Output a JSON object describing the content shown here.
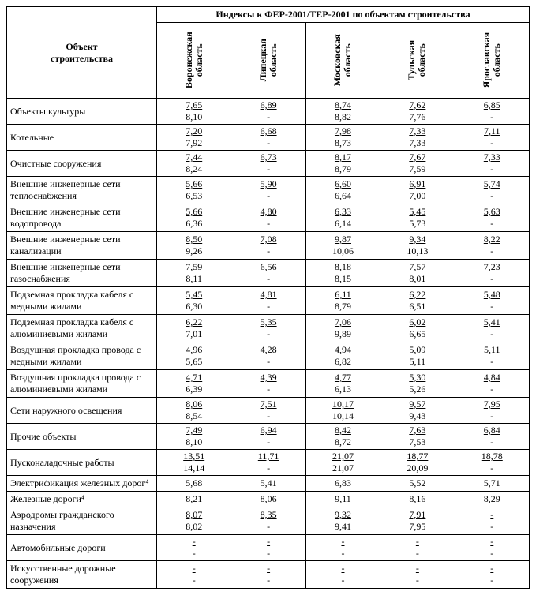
{
  "headers": {
    "object": "Объект\nстроительства",
    "group": "Индексы к ФЕР-2001/ТЕР-2001 по объектам строительства",
    "regions": [
      "Воронежская\nобласть",
      "Липецкая\nобласть",
      "Московская\nобласть",
      "Тульская\nобласть",
      "Ярославская\nобласть"
    ]
  },
  "rows": [
    {
      "label": "Объекты культуры",
      "vals": [
        [
          "7,65",
          "8,10"
        ],
        [
          "6,89",
          "-"
        ],
        [
          "8,74",
          "8,82"
        ],
        [
          "7,62",
          "7,76"
        ],
        [
          "6,85",
          "-"
        ]
      ]
    },
    {
      "label": "Котельные",
      "vals": [
        [
          "7,20",
          "7,92"
        ],
        [
          "6,68",
          "-"
        ],
        [
          "7,98",
          "8,73"
        ],
        [
          "7,33",
          "7,33"
        ],
        [
          "7,11",
          "-"
        ]
      ]
    },
    {
      "label": "Очистные сооружения",
      "vals": [
        [
          "7,44",
          "8,24"
        ],
        [
          "6,73",
          "-"
        ],
        [
          "8,17",
          "8,79"
        ],
        [
          "7,67",
          "7,59"
        ],
        [
          "7,33",
          "-"
        ]
      ]
    },
    {
      "label": "Внешние инженерные сети теплоснабжения",
      "vals": [
        [
          "5,66",
          "6,53"
        ],
        [
          "5,90",
          "-"
        ],
        [
          "6,60",
          "6,64"
        ],
        [
          "6,91",
          "7,00"
        ],
        [
          "5,74",
          "-"
        ]
      ]
    },
    {
      "label": "Внешние инженерные сети водопровода",
      "vals": [
        [
          "5,66",
          "6,36"
        ],
        [
          "4,80",
          "-"
        ],
        [
          "6,33",
          "6,14"
        ],
        [
          "5,45",
          "5,73"
        ],
        [
          "5,63",
          "-"
        ]
      ]
    },
    {
      "label": "Внешние инженерные сети канализации",
      "vals": [
        [
          "8,50",
          "9,26"
        ],
        [
          "7,08",
          "-"
        ],
        [
          "9,87",
          "10,06"
        ],
        [
          "9,34",
          "10,13"
        ],
        [
          "8,22",
          "-"
        ]
      ]
    },
    {
      "label": "Внешние инженерные сети газоснабжения",
      "vals": [
        [
          "7,59",
          "8,11"
        ],
        [
          "6,56",
          "-"
        ],
        [
          "8,18",
          "8,15"
        ],
        [
          "7,57",
          "8,01"
        ],
        [
          "7,23",
          "-"
        ]
      ]
    },
    {
      "label": "Подземная прокладка кабеля с медными жилами",
      "vals": [
        [
          "5,45",
          "6,30"
        ],
        [
          "4,81",
          "-"
        ],
        [
          "6,11",
          "8,79"
        ],
        [
          "6,22",
          "6,51"
        ],
        [
          "5,48",
          "-"
        ]
      ]
    },
    {
      "label": "Подземная прокладка кабеля с алюминиевыми жилами",
      "vals": [
        [
          "6,22",
          "7,01"
        ],
        [
          "5,35",
          "-"
        ],
        [
          "7,06",
          "9,89"
        ],
        [
          "6,02",
          "6,65"
        ],
        [
          "5,41",
          "-"
        ]
      ]
    },
    {
      "label": "Воздушная прокладка провода с медными жилами",
      "vals": [
        [
          "4,96",
          "5,65"
        ],
        [
          "4,28",
          "-"
        ],
        [
          "4,94",
          "6,82"
        ],
        [
          "5,09",
          "5,11"
        ],
        [
          "5,11",
          "-"
        ]
      ]
    },
    {
      "label": "Воздушная прокладка провода с алюминиевыми жилами",
      "vals": [
        [
          "4,71",
          "6,39"
        ],
        [
          "4,39",
          "-"
        ],
        [
          "4,77",
          "6,13"
        ],
        [
          "5,30",
          "5,26"
        ],
        [
          "4,84",
          "-"
        ]
      ]
    },
    {
      "label": "Сети наружного освещения",
      "vals": [
        [
          "8,06",
          "8,54"
        ],
        [
          "7,51",
          "-"
        ],
        [
          "10,17",
          "10,14"
        ],
        [
          "9,57",
          "9,43"
        ],
        [
          "7,95",
          "-"
        ]
      ]
    },
    {
      "label": "Прочие объекты",
      "vals": [
        [
          "7,49",
          "8,10"
        ],
        [
          "6,94",
          "-"
        ],
        [
          "8,42",
          "8,72"
        ],
        [
          "7,63",
          "7,53"
        ],
        [
          "6,84",
          "-"
        ]
      ]
    },
    {
      "label": "Пусконаладочные работы",
      "vals": [
        [
          "13,51",
          "14,14"
        ],
        [
          "11,71",
          "-"
        ],
        [
          "21,07",
          "21,07"
        ],
        [
          "18,77",
          "20,09"
        ],
        [
          "18,78",
          "-"
        ]
      ]
    },
    {
      "label": "Электрификация железных дорог⁴",
      "vals": [
        [
          "5,68",
          null
        ],
        [
          "5,41",
          null
        ],
        [
          "6,83",
          null
        ],
        [
          "5,52",
          null
        ],
        [
          "5,71",
          null
        ]
      ]
    },
    {
      "label": "Железные дороги⁴",
      "vals": [
        [
          "8,21",
          null
        ],
        [
          "8,06",
          null
        ],
        [
          "9,11",
          null
        ],
        [
          "8,16",
          null
        ],
        [
          "8,29",
          null
        ]
      ]
    },
    {
      "label": "Аэродромы гражданского назначения",
      "vals": [
        [
          "8,07",
          "8,02"
        ],
        [
          "8,35",
          "-"
        ],
        [
          "9,32",
          "9,41"
        ],
        [
          "7,91",
          "7,95"
        ],
        [
          "-",
          "-"
        ]
      ]
    },
    {
      "label": "Автомобильные дороги",
      "vals": [
        [
          "-",
          "-"
        ],
        [
          "-",
          "-"
        ],
        [
          "-",
          "-"
        ],
        [
          "-",
          "-"
        ],
        [
          "-",
          "-"
        ]
      ]
    },
    {
      "label": "Искусственные дорожные сооружения",
      "vals": [
        [
          "-",
          "-"
        ],
        [
          "-",
          "-"
        ],
        [
          "-",
          "-"
        ],
        [
          "-",
          "-"
        ],
        [
          "-",
          "-"
        ]
      ]
    }
  ]
}
